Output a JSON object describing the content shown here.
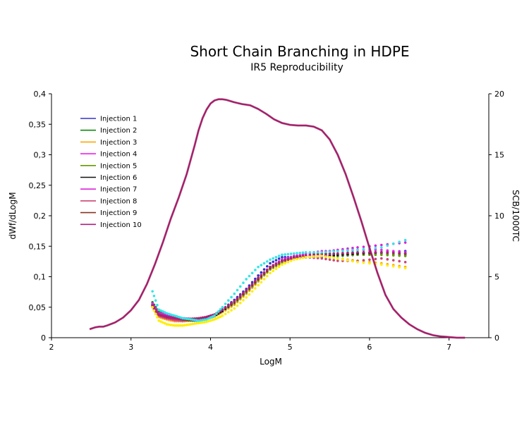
{
  "chart_data": {
    "type": "line",
    "title": "Short Chain Branching in HDPE",
    "subtitle": "IR5 Reproducibility",
    "xlabel": "LogM",
    "ylabel": "dWf/dLogM",
    "y2label": "SCB/1000TC",
    "xlim": [
      2,
      7.5
    ],
    "ylim": [
      0,
      0.4
    ],
    "y2lim": [
      0,
      20
    ],
    "x_ticks": [
      "2",
      "3",
      "4",
      "5",
      "6",
      "7"
    ],
    "y_ticks": [
      "0",
      "0,05",
      "0,1",
      "0,15",
      "0,2",
      "0,25",
      "0,3",
      "0,35",
      "0,4"
    ],
    "y2_ticks": [
      "0",
      "5",
      "10",
      "15",
      "20"
    ],
    "legend_position": "upper-left",
    "grid": false,
    "distribution": {
      "x": [
        2.48,
        2.55,
        2.6,
        2.65,
        2.7,
        2.8,
        2.9,
        3.0,
        3.1,
        3.2,
        3.3,
        3.4,
        3.5,
        3.6,
        3.7,
        3.8,
        3.85,
        3.9,
        3.95,
        4.0,
        4.05,
        4.1,
        4.15,
        4.2,
        4.3,
        4.4,
        4.5,
        4.6,
        4.7,
        4.8,
        4.9,
        5.0,
        5.1,
        5.2,
        5.3,
        5.4,
        5.5,
        5.6,
        5.7,
        5.8,
        5.9,
        6.0,
        6.1,
        6.2,
        6.3,
        6.4,
        6.5,
        6.6,
        6.7,
        6.8,
        6.9,
        7.0,
        7.1,
        7.2
      ],
      "y": [
        0.014,
        0.017,
        0.018,
        0.018,
        0.02,
        0.025,
        0.033,
        0.045,
        0.062,
        0.088,
        0.12,
        0.156,
        0.195,
        0.23,
        0.268,
        0.315,
        0.34,
        0.36,
        0.374,
        0.384,
        0.389,
        0.391,
        0.391,
        0.39,
        0.386,
        0.383,
        0.381,
        0.375,
        0.367,
        0.358,
        0.352,
        0.349,
        0.348,
        0.348,
        0.346,
        0.34,
        0.325,
        0.3,
        0.268,
        0.23,
        0.19,
        0.147,
        0.106,
        0.07,
        0.047,
        0.033,
        0.022,
        0.014,
        0.008,
        0.004,
        0.002,
        0.001,
        0.0,
        0.0
      ],
      "color": "#a8146a"
    },
    "series": [
      {
        "name": "Injection 1",
        "color": "#3333cc",
        "scb": [
          2.6,
          1.8,
          1.7,
          1.5,
          1.35,
          1.4,
          1.4,
          1.55,
          1.75,
          2.3,
          3.1,
          4.0,
          5.1,
          6.1,
          6.6,
          6.6,
          6.6,
          6.6,
          6.8,
          6.9,
          7.0,
          7.1
        ]
      },
      {
        "name": "Injection 2",
        "color": "#118811",
        "scb": [
          2.9,
          2.1,
          1.9,
          1.7,
          1.55,
          1.5,
          1.5,
          1.6,
          1.8,
          2.3,
          3.0,
          3.8,
          4.8,
          5.7,
          6.3,
          6.5,
          6.6,
          6.7,
          6.7,
          6.8,
          6.9,
          6.8
        ]
      },
      {
        "name": "Injection 3",
        "color": "#ffa500",
        "scb": [
          2.6,
          1.7,
          1.5,
          1.35,
          1.35,
          1.4,
          1.5,
          1.6,
          1.75,
          2.1,
          2.7,
          3.6,
          4.6,
          5.6,
          6.1,
          6.5,
          6.6,
          6.7,
          6.5,
          6.3,
          6.1,
          5.8
        ]
      },
      {
        "name": "Injection 4",
        "color": "#ee22ee",
        "scb": [
          2.5,
          1.8,
          1.6,
          1.45,
          1.4,
          1.5,
          1.5,
          1.6,
          1.8,
          2.2,
          2.9,
          3.7,
          4.7,
          5.7,
          6.3,
          6.6,
          6.9,
          7.1,
          7.1,
          7.2,
          7.2,
          7.0
        ]
      },
      {
        "name": "Injection 5",
        "color": "#669900",
        "scb": [
          2.7,
          1.9,
          1.7,
          1.5,
          1.45,
          1.45,
          1.5,
          1.6,
          1.8,
          2.2,
          2.8,
          3.7,
          4.7,
          5.6,
          6.2,
          6.6,
          6.8,
          6.9,
          6.8,
          6.8,
          6.8,
          6.7
        ]
      },
      {
        "name": "Injection 6",
        "color": "#111111",
        "scb": [
          2.7,
          1.9,
          1.8,
          1.6,
          1.5,
          1.45,
          1.45,
          1.6,
          1.8,
          2.2,
          2.9,
          3.8,
          4.8,
          5.8,
          6.3,
          6.5,
          6.6,
          6.7,
          6.8,
          6.9,
          7.0,
          6.9
        ]
      },
      {
        "name": "Injection 7",
        "color": "#dd22dd",
        "scb": [
          2.8,
          2.0,
          1.9,
          1.7,
          1.6,
          1.55,
          1.55,
          1.65,
          1.85,
          2.3,
          3.0,
          3.9,
          4.9,
          5.8,
          6.4,
          6.7,
          6.8,
          7.0,
          7.2,
          7.4,
          7.6,
          7.8
        ]
      },
      {
        "name": "Injection 8",
        "color": "#cc4477",
        "scb": [
          2.5,
          1.8,
          1.6,
          1.5,
          1.5,
          1.55,
          1.6,
          1.7,
          1.9,
          2.3,
          2.9,
          3.8,
          4.8,
          5.7,
          6.3,
          6.5,
          6.6,
          6.5,
          6.3,
          6.3,
          6.5,
          6.2
        ]
      },
      {
        "name": "Injection 9",
        "color": "#883322",
        "scb": [
          2.6,
          1.9,
          1.7,
          1.6,
          1.5,
          1.5,
          1.55,
          1.65,
          1.85,
          2.3,
          2.9,
          3.8,
          4.8,
          5.7,
          6.3,
          6.6,
          6.7,
          6.9,
          6.9,
          7.0,
          7.0,
          6.9
        ]
      },
      {
        "name": "Injection 10",
        "color": "#aa2277",
        "scb": [
          2.6,
          1.9,
          1.7,
          1.6,
          1.5,
          1.5,
          1.55,
          1.7,
          1.9,
          2.3,
          3.0,
          3.9,
          4.9,
          5.8,
          6.3,
          6.6,
          6.7,
          6.8,
          6.9,
          7.0,
          7.0,
          6.9
        ]
      }
    ],
    "extra_scatter": [
      {
        "color": "#ffee00",
        "scb": [
          2.5,
          1.4,
          1.1,
          1.0,
          1.0,
          1.1,
          1.2,
          1.3,
          1.5,
          1.8,
          2.4,
          3.3,
          4.3,
          5.3,
          6.0,
          6.4,
          6.6,
          6.7,
          6.5,
          6.2,
          6.0,
          5.7
        ]
      },
      {
        "color": "#33e5e5",
        "scb": [
          3.8,
          2.3,
          2.0,
          1.8,
          1.6,
          1.5,
          1.4,
          1.5,
          1.8,
          2.5,
          3.6,
          4.8,
          5.8,
          6.4,
          6.8,
          6.9,
          7.0,
          7.0,
          7.1,
          7.2,
          7.4,
          8.0
        ]
      }
    ],
    "scb_x": [
      3.27,
      3.35,
      3.45,
      3.55,
      3.65,
      3.75,
      3.85,
      3.95,
      4.05,
      4.15,
      4.3,
      4.45,
      4.6,
      4.75,
      4.9,
      5.05,
      5.2,
      5.4,
      5.6,
      5.85,
      6.15,
      6.45
    ]
  }
}
